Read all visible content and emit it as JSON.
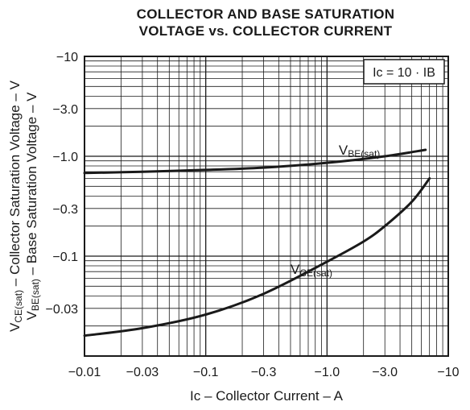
{
  "chart_data": {
    "type": "line",
    "title": "COLLECTOR AND BASE SATURATION",
    "subtitle": "VOLTAGE vs. COLLECTOR CURRENT",
    "xlabel": "Ic – Collector Current – A",
    "ylabel_line1": "VCE(sat) – Collector Saturation Voltage – V",
    "ylabel_line2": "VBE(sat) – Base Saturation Voltage – V",
    "x_scale": "log",
    "y_scale": "log",
    "xlim": [
      -0.01,
      -10
    ],
    "ylim": [
      -0.01,
      -10
    ],
    "grid": true,
    "x_ticks": [
      {
        "value": -0.01,
        "label": "−0.01"
      },
      {
        "value": -0.03,
        "label": "−0.03"
      },
      {
        "value": -0.1,
        "label": "−0.1"
      },
      {
        "value": -0.3,
        "label": "−0.3"
      },
      {
        "value": -1.0,
        "label": "−1.0"
      },
      {
        "value": -3.0,
        "label": "−3.0"
      },
      {
        "value": -10,
        "label": "−10"
      }
    ],
    "y_ticks": [
      {
        "value": -10,
        "label": "−10"
      },
      {
        "value": -3.0,
        "label": "−3.0"
      },
      {
        "value": -1.0,
        "label": "−1.0"
      },
      {
        "value": -0.3,
        "label": "−0.3"
      },
      {
        "value": -0.1,
        "label": "−0.1"
      },
      {
        "value": -0.03,
        "label": "−0.03"
      }
    ],
    "annotation": "Ic = 10 · IB",
    "series": [
      {
        "name": "VBE(sat)",
        "x": [
          -0.01,
          -0.03,
          -0.1,
          -0.3,
          -1.0,
          -3.0,
          -6.5
        ],
        "y": [
          -0.68,
          -0.7,
          -0.73,
          -0.77,
          -0.86,
          -1.0,
          -1.16
        ]
      },
      {
        "name": "VCE(sat)",
        "x": [
          -0.01,
          -0.03,
          -0.1,
          -0.3,
          -1.0,
          -2.0,
          -3.0,
          -5.0,
          -7.0
        ],
        "y": [
          -0.016,
          -0.019,
          -0.026,
          -0.042,
          -0.088,
          -0.14,
          -0.2,
          -0.35,
          -0.6
        ]
      }
    ]
  }
}
